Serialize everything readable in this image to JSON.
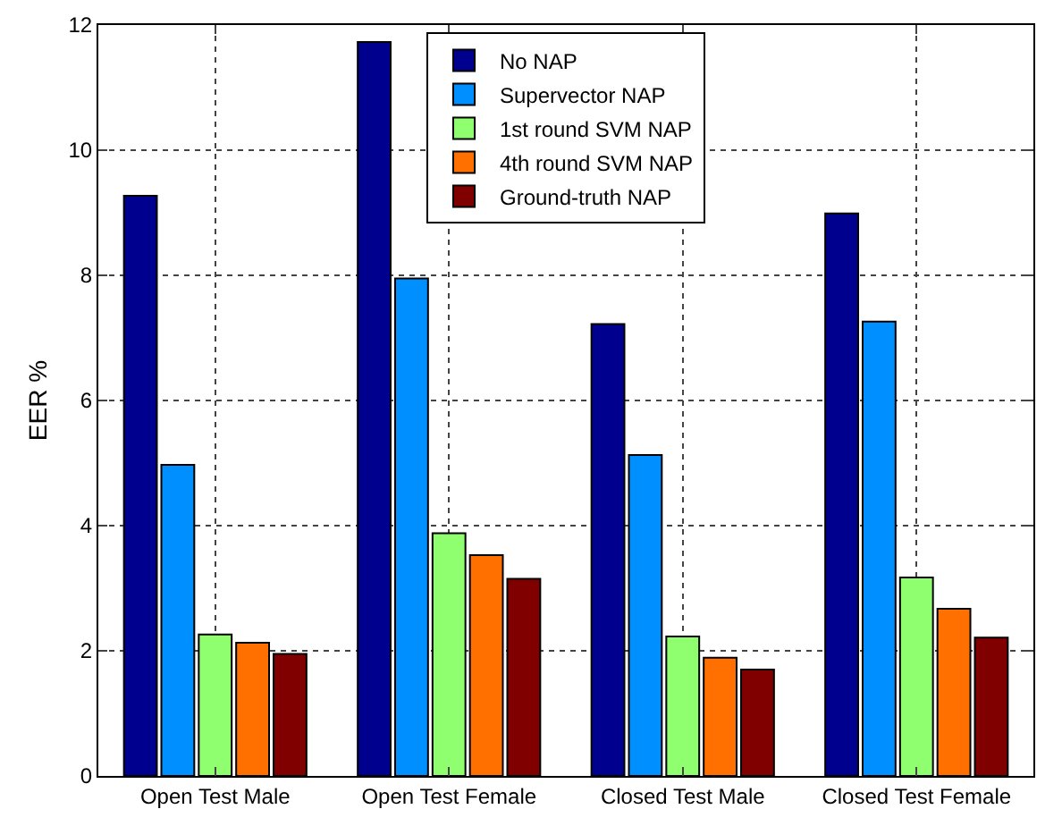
{
  "chart_data": {
    "type": "bar",
    "ylabel": "EER %",
    "categories": [
      "Open Test Male",
      "Open Test Female",
      "Closed Test Male",
      "Closed Test Female"
    ],
    "series": [
      {
        "name": "No NAP",
        "color": "#00008f",
        "values": [
          9.27,
          11.73,
          7.22,
          8.99
        ]
      },
      {
        "name": "Supervector NAP",
        "color": "#008fff",
        "values": [
          4.97,
          7.95,
          5.13,
          7.26
        ]
      },
      {
        "name": "1st round SVM NAP",
        "color": "#8fff70",
        "values": [
          2.26,
          3.88,
          2.23,
          3.17
        ]
      },
      {
        "name": "4th round SVM NAP",
        "color": "#ff7000",
        "values": [
          2.13,
          3.53,
          1.89,
          2.67
        ]
      },
      {
        "name": "Ground-truth NAP",
        "color": "#800000",
        "values": [
          1.95,
          3.15,
          1.7,
          2.21
        ]
      }
    ],
    "ylim": [
      0,
      12
    ],
    "yticks": [
      0,
      2,
      4,
      6,
      8,
      10,
      12
    ],
    "grid": true,
    "legend": "top"
  }
}
